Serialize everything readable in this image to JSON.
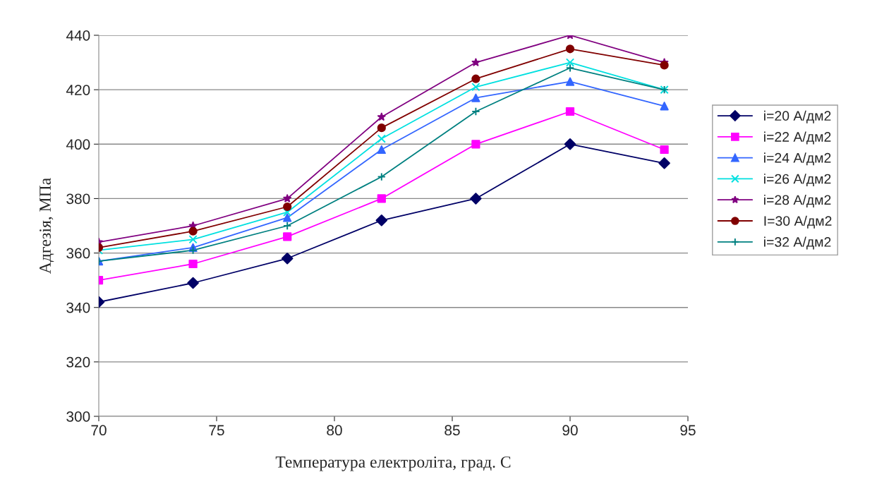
{
  "chart_data": {
    "type": "line",
    "xlabel": "Температура електроліта, град. С",
    "ylabel": "Адгезія, МПа",
    "x": [
      70,
      74,
      78,
      82,
      86,
      90,
      94
    ],
    "xlim": [
      70,
      95
    ],
    "xticks": [
      70,
      75,
      80,
      85,
      90,
      95
    ],
    "ylim": [
      300,
      440
    ],
    "yticks": [
      300,
      320,
      340,
      360,
      380,
      400,
      420,
      440
    ],
    "grid": "y",
    "legend": "right",
    "series": [
      {
        "name": "i=20 А/дм2",
        "color": "#000066",
        "marker": "diamond",
        "values": [
          342,
          349,
          358,
          372,
          380,
          400,
          393
        ]
      },
      {
        "name": "i=22 А/дм2",
        "color": "#ff00ff",
        "marker": "square",
        "values": [
          350,
          356,
          366,
          380,
          400,
          412,
          398
        ]
      },
      {
        "name": "i=24 А/дм2",
        "color": "#3366ff",
        "marker": "triangle",
        "values": [
          357,
          362,
          373,
          398,
          417,
          423,
          414
        ]
      },
      {
        "name": "i=26 А/дм2",
        "color": "#00e0e0",
        "marker": "cross",
        "values": [
          361,
          365,
          375,
          402,
          421,
          430,
          420
        ]
      },
      {
        "name": "i=28 А/дм2",
        "color": "#800080",
        "marker": "star",
        "values": [
          364,
          370,
          380,
          410,
          430,
          440,
          430
        ]
      },
      {
        "name": "I=30 А/дм2",
        "color": "#800000",
        "marker": "circle",
        "values": [
          362,
          368,
          377,
          406,
          424,
          435,
          429
        ]
      },
      {
        "name": "i=32 А/дм2",
        "color": "#008080",
        "marker": "plus",
        "values": [
          357,
          361,
          370,
          388,
          412,
          428,
          420
        ]
      }
    ]
  }
}
